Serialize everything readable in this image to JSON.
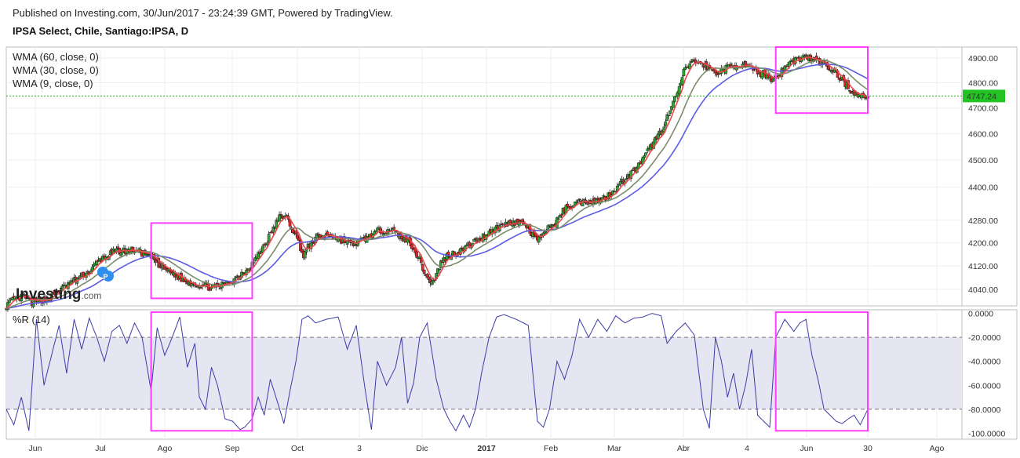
{
  "header": {
    "published": "Published on Investing.com, 30/Jun/2017 - 23:24:39 GMT, Powered by TradingView.",
    "symbol": "IPSA Select, Chile, Santiago:IPSA, D"
  },
  "watermark": {
    "brand": "Investing",
    "suffix": ".com"
  },
  "event_marker": {
    "letter": "P",
    "icon": "dividend-marker-icon"
  },
  "colors": {
    "up": "#2fa52c",
    "down": "#d8282b",
    "wma60": "#5b5be6",
    "wma30": "#7b8c6a",
    "wma9": "#e8494c",
    "highlight": "#ff3dff",
    "wr_line": "#3c3ca8",
    "wr_band": "#e6e6f3",
    "price_tag": "#22c322",
    "price_line": "#23b023"
  },
  "chart_data": [
    {
      "type": "candlestick",
      "indicators": [
        "WMA (60, close, 0)",
        "WMA (30, close, 0)",
        "WMA (9, close, 0)"
      ],
      "last_price": "4747.24",
      "yticks": [
        "4900.00",
        "4800.00",
        "4700.00",
        "4600.00",
        "4500.00",
        "4400.00",
        "4280.00",
        "4200.00",
        "4120.00",
        "4040.00"
      ],
      "ylim": [
        3985,
        4945
      ],
      "scale": "log",
      "xticks": [
        "Jun",
        "Jul",
        "Ago",
        "Sep",
        "Oct",
        "3",
        "Dic",
        "2017",
        "Feb",
        "Mar",
        "Abr",
        "4",
        "Jun",
        "30",
        "Ago"
      ],
      "grid": true,
      "anchors": [
        [
          0,
          3988
        ],
        [
          5,
          4005
        ],
        [
          12,
          4015
        ],
        [
          17,
          3995
        ],
        [
          22,
          4003
        ],
        [
          28,
          4010
        ],
        [
          35,
          4036
        ],
        [
          45,
          4070
        ],
        [
          55,
          4100
        ],
        [
          62,
          4140
        ],
        [
          72,
          4170
        ],
        [
          85,
          4175
        ],
        [
          96,
          4150
        ],
        [
          102,
          4120
        ],
        [
          110,
          4095
        ],
        [
          118,
          4070
        ],
        [
          128,
          4055
        ],
        [
          138,
          4045
        ],
        [
          146,
          4060
        ],
        [
          152,
          4080
        ],
        [
          160,
          4110
        ],
        [
          166,
          4150
        ],
        [
          172,
          4200
        ],
        [
          178,
          4260
        ],
        [
          182,
          4300
        ],
        [
          186,
          4285
        ],
        [
          190,
          4245
        ],
        [
          194,
          4200
        ],
        [
          197,
          4155
        ],
        [
          200,
          4185
        ],
        [
          206,
          4220
        ],
        [
          214,
          4230
        ],
        [
          222,
          4210
        ],
        [
          230,
          4195
        ],
        [
          238,
          4215
        ],
        [
          246,
          4240
        ],
        [
          254,
          4250
        ],
        [
          262,
          4220
        ],
        [
          268,
          4200
        ],
        [
          274,
          4140
        ],
        [
          279,
          4075
        ],
        [
          283,
          4065
        ],
        [
          288,
          4130
        ],
        [
          292,
          4155
        ],
        [
          300,
          4170
        ],
        [
          308,
          4195
        ],
        [
          314,
          4215
        ],
        [
          320,
          4240
        ],
        [
          328,
          4260
        ],
        [
          336,
          4275
        ],
        [
          344,
          4265
        ],
        [
          349,
          4225
        ],
        [
          354,
          4210
        ],
        [
          358,
          4250
        ],
        [
          364,
          4270
        ],
        [
          370,
          4320
        ],
        [
          378,
          4345
        ],
        [
          386,
          4350
        ],
        [
          394,
          4352
        ],
        [
          400,
          4375
        ],
        [
          405,
          4400
        ],
        [
          410,
          4430
        ],
        [
          416,
          4460
        ],
        [
          422,
          4500
        ],
        [
          428,
          4560
        ],
        [
          434,
          4610
        ],
        [
          440,
          4690
        ],
        [
          445,
          4760
        ],
        [
          449,
          4840
        ],
        [
          453,
          4880
        ],
        [
          458,
          4885
        ],
        [
          464,
          4865
        ],
        [
          470,
          4840
        ],
        [
          474,
          4850
        ],
        [
          480,
          4865
        ],
        [
          486,
          4875
        ],
        [
          492,
          4860
        ],
        [
          498,
          4840
        ],
        [
          504,
          4835
        ],
        [
          508,
          4810
        ],
        [
          512,
          4835
        ],
        [
          518,
          4875
        ],
        [
          524,
          4895
        ],
        [
          530,
          4905
        ],
        [
          536,
          4890
        ],
        [
          542,
          4875
        ],
        [
          546,
          4855
        ],
        [
          550,
          4840
        ],
        [
          555,
          4805
        ],
        [
          560,
          4770
        ],
        [
          565,
          4745
        ],
        [
          571,
          4747.24
        ]
      ],
      "highlight_boxes": [
        {
          "from": 96,
          "to": 163,
          "ymin": 4010,
          "ymax": 4270
        },
        {
          "from": 510,
          "to": 571,
          "ymin": 4680,
          "ymax": 4945
        }
      ]
    },
    {
      "type": "line",
      "indicator": "%R (14)",
      "ylim": [
        -105,
        3
      ],
      "yticks": [
        "0.0000",
        "-20.0000",
        "-40.0000",
        "-60.0000",
        "-80.0000",
        "-100.0000"
      ],
      "band": [
        -20,
        -80
      ],
      "anchors": [
        [
          0,
          -80
        ],
        [
          5,
          -93
        ],
        [
          10,
          -70
        ],
        [
          15,
          -98
        ],
        [
          20,
          -5
        ],
        [
          25,
          -60
        ],
        [
          30,
          -35
        ],
        [
          35,
          -10
        ],
        [
          40,
          -50
        ],
        [
          45,
          -5
        ],
        [
          50,
          -30
        ],
        [
          55,
          -4
        ],
        [
          60,
          -20
        ],
        [
          65,
          -40
        ],
        [
          70,
          -15
        ],
        [
          75,
          -10
        ],
        [
          80,
          -25
        ],
        [
          85,
          -8
        ],
        [
          90,
          -20
        ],
        [
          96,
          -65
        ],
        [
          100,
          -12
        ],
        [
          105,
          -35
        ],
        [
          110,
          -20
        ],
        [
          115,
          -3
        ],
        [
          120,
          -45
        ],
        [
          125,
          -25
        ],
        [
          128,
          -70
        ],
        [
          132,
          -80
        ],
        [
          136,
          -45
        ],
        [
          140,
          -60
        ],
        [
          145,
          -88
        ],
        [
          150,
          -90
        ],
        [
          155,
          -97
        ],
        [
          158,
          -95
        ],
        [
          163,
          -88
        ],
        [
          167,
          -70
        ],
        [
          171,
          -85
        ],
        [
          175,
          -55
        ],
        [
          180,
          -75
        ],
        [
          184,
          -92
        ],
        [
          188,
          -65
        ],
        [
          192,
          -40
        ],
        [
          196,
          -5
        ],
        [
          200,
          -2
        ],
        [
          205,
          -8
        ],
        [
          212,
          -5
        ],
        [
          220,
          -3
        ],
        [
          226,
          -30
        ],
        [
          232,
          -10
        ],
        [
          238,
          -65
        ],
        [
          242,
          -97
        ],
        [
          246,
          -40
        ],
        [
          252,
          -60
        ],
        [
          258,
          -45
        ],
        [
          262,
          -20
        ],
        [
          266,
          -75
        ],
        [
          270,
          -58
        ],
        [
          274,
          -20
        ],
        [
          279,
          -8
        ],
        [
          285,
          -55
        ],
        [
          290,
          -80
        ],
        [
          294,
          -90
        ],
        [
          298,
          -98
        ],
        [
          303,
          -85
        ],
        [
          307,
          -95
        ],
        [
          311,
          -80
        ],
        [
          315,
          -50
        ],
        [
          320,
          -20
        ],
        [
          325,
          -3
        ],
        [
          330,
          -1
        ],
        [
          338,
          -5
        ],
        [
          346,
          -10
        ],
        [
          352,
          -90
        ],
        [
          356,
          -95
        ],
        [
          360,
          -80
        ],
        [
          365,
          -40
        ],
        [
          370,
          -55
        ],
        [
          375,
          -35
        ],
        [
          380,
          -5
        ],
        [
          386,
          -20
        ],
        [
          392,
          -5
        ],
        [
          398,
          -15
        ],
        [
          404,
          -2
        ],
        [
          410,
          -8
        ],
        [
          416,
          -4
        ],
        [
          422,
          -3
        ],
        [
          428,
          0
        ],
        [
          434,
          -2
        ],
        [
          438,
          -25
        ],
        [
          444,
          -15
        ],
        [
          450,
          -8
        ],
        [
          456,
          -18
        ],
        [
          462,
          -80
        ],
        [
          466,
          -96
        ],
        [
          470,
          -20
        ],
        [
          474,
          -40
        ],
        [
          478,
          -70
        ],
        [
          482,
          -50
        ],
        [
          486,
          -80
        ],
        [
          490,
          -60
        ],
        [
          494,
          -30
        ],
        [
          498,
          -85
        ],
        [
          502,
          -90
        ],
        [
          506,
          -95
        ],
        [
          510,
          -20
        ],
        [
          516,
          -5
        ],
        [
          522,
          -15
        ],
        [
          526,
          -8
        ],
        [
          530,
          -5
        ],
        [
          534,
          -35
        ],
        [
          538,
          -55
        ],
        [
          542,
          -80
        ],
        [
          546,
          -85
        ],
        [
          550,
          -90
        ],
        [
          554,
          -92
        ],
        [
          558,
          -88
        ],
        [
          562,
          -85
        ],
        [
          566,
          -93
        ],
        [
          571,
          -80
        ]
      ],
      "highlight_boxes": [
        {
          "from": 96,
          "to": 163
        },
        {
          "from": 510,
          "to": 571
        }
      ]
    }
  ]
}
